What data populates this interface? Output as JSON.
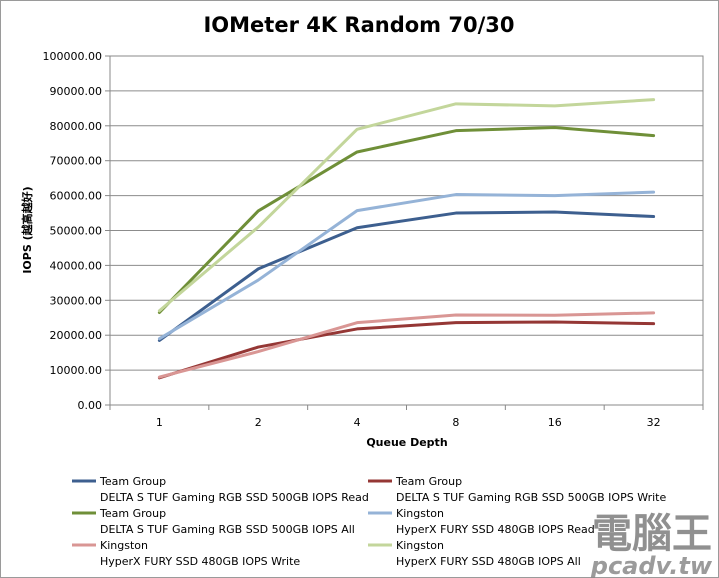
{
  "chart_data": {
    "type": "line",
    "title": "IOMeter 4K Random 70/30",
    "xlabel": "Queue Depth",
    "ylabel": "IOPS (越高越好)",
    "categories": [
      "1",
      "2",
      "4",
      "8",
      "16",
      "32"
    ],
    "ylim": [
      0,
      100000
    ],
    "yticks": [
      "0.00",
      "10000.00",
      "20000.00",
      "30000.00",
      "40000.00",
      "50000.00",
      "60000.00",
      "70000.00",
      "80000.00",
      "90000.00",
      "100000.00"
    ],
    "grid": true,
    "legend_position": "bottom",
    "series": [
      {
        "name_line1": "Team Group",
        "name_line2": "DELTA S TUF Gaming  RGB SSD 500GB IOPS Read",
        "color": "#3d5f8f",
        "values": [
          18500,
          39000,
          50800,
          55000,
          55300,
          54000
        ]
      },
      {
        "name_line1": "Team Group",
        "name_line2": "DELTA S TUF Gaming  RGB SSD 500GB IOPS Write",
        "color": "#953735",
        "values": [
          7800,
          16600,
          21800,
          23600,
          23800,
          23300
        ]
      },
      {
        "name_line1": "Team Group",
        "name_line2": "DELTA S TUF Gaming  RGB SSD 500GB IOPS All",
        "color": "#6f8f38",
        "values": [
          26500,
          55600,
          72500,
          78600,
          79500,
          77200
        ]
      },
      {
        "name_line1": "Kingston",
        "name_line2": "HyperX FURY SSD 480GB IOPS Read",
        "color": "#95b3d7",
        "values": [
          19000,
          35800,
          55700,
          60300,
          60000,
          61000
        ]
      },
      {
        "name_line1": "Kingston",
        "name_line2": "HyperX FURY SSD 480GB IOPS Write",
        "color": "#d99694",
        "values": [
          8000,
          15300,
          23600,
          25800,
          25700,
          26400
        ]
      },
      {
        "name_line1": "Kingston",
        "name_line2": "HyperX FURY SSD 480GB IOPS All",
        "color": "#c3d69b",
        "values": [
          27000,
          51000,
          79000,
          86300,
          85700,
          87500
        ]
      }
    ]
  },
  "watermark": {
    "main": "電腦王",
    "sub": "pcadv.tw"
  }
}
